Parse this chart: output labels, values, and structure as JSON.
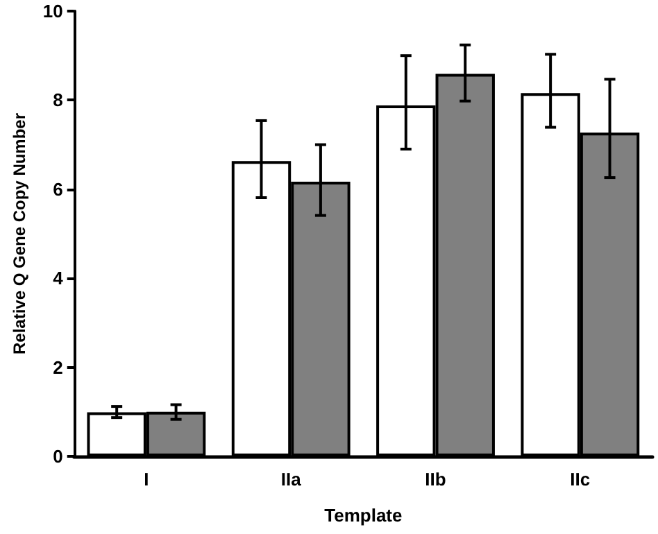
{
  "chart_data": {
    "type": "bar",
    "xlabel": "Template",
    "ylabel": "Relative Q Gene Copy Number",
    "categories": [
      "I",
      "IIa",
      "IIb",
      "IIc"
    ],
    "series": [
      {
        "color": "#ffffff",
        "values": [
          0.99,
          6.63,
          7.88,
          8.16
        ],
        "errors": [
          [
            0.87,
            1.12
          ],
          [
            5.81,
            7.54
          ],
          [
            6.9,
            9.0
          ],
          [
            7.39,
            9.03
          ]
        ]
      },
      {
        "color": "#808080",
        "values": [
          1.0,
          6.17,
          8.59,
          7.27
        ],
        "errors": [
          [
            0.83,
            1.16
          ],
          [
            5.41,
            7.0
          ],
          [
            7.98,
            9.24
          ],
          [
            6.26,
            8.47
          ]
        ]
      }
    ],
    "ylim": [
      0,
      10
    ],
    "yticks": [
      0,
      2,
      4,
      6,
      8,
      10
    ],
    "grid": false
  }
}
